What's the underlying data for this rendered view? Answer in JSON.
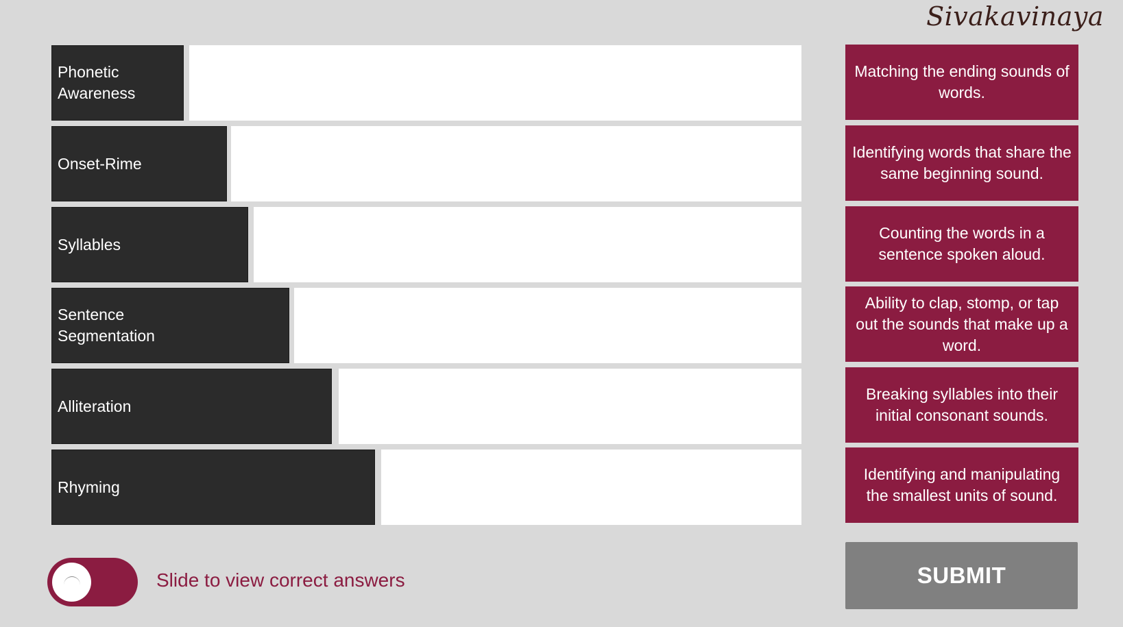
{
  "brand": {
    "logo_text": "Sivakavinaya"
  },
  "terms": [
    {
      "label": "Phonetic Awareness"
    },
    {
      "label": "Onset-Rime"
    },
    {
      "label": "Syllables"
    },
    {
      "label": "Sentence Segmentation"
    },
    {
      "label": "Alliteration"
    },
    {
      "label": "Rhyming"
    }
  ],
  "answers": [
    {
      "text": "Matching the ending sounds of words."
    },
    {
      "text": "Identifying words that share the same beginning sound."
    },
    {
      "text": "Counting the words in a sentence spoken aloud."
    },
    {
      "text": "Ability to clap, stomp, or tap out the sounds that make up a word."
    },
    {
      "text": "Breaking syllables into their initial consonant sounds."
    },
    {
      "text": "Identifying and manipulating the smallest units of sound."
    }
  ],
  "toggle": {
    "label": "Slide to view correct answers",
    "state": "off"
  },
  "submit": {
    "label": "SUBMIT"
  },
  "colors": {
    "background": "#d9d9d9",
    "term_box": "#2b2b2b",
    "accent": "#8b1c41",
    "submit_disabled": "#808080",
    "drop_zone": "#ffffff"
  }
}
